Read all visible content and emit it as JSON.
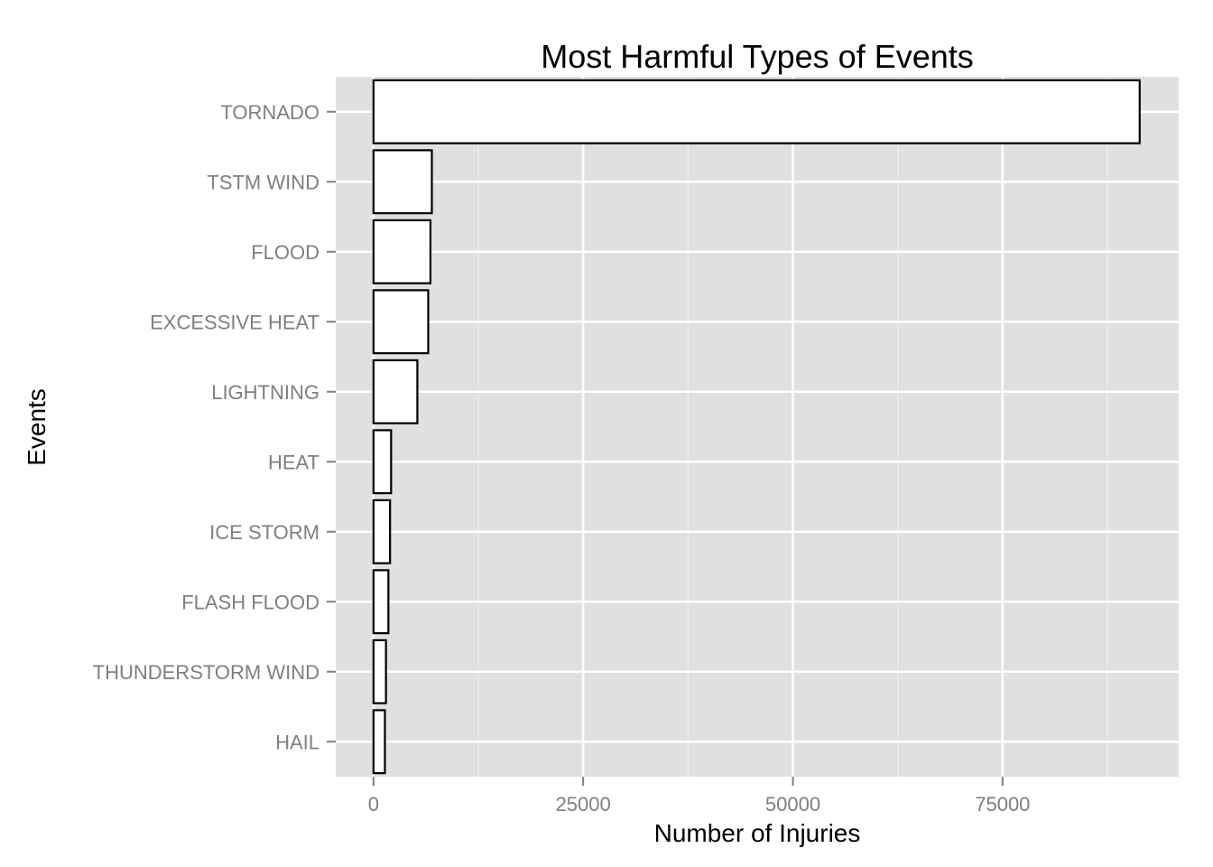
{
  "chart_data": {
    "type": "bar",
    "orientation": "horizontal",
    "title": "Most Harmful Types of Events",
    "xlabel": "Number of Injuries",
    "ylabel": "Events",
    "categories": [
      "TORNADO",
      "TSTM WIND",
      "FLOOD",
      "EXCESSIVE HEAT",
      "LIGHTNING",
      "HEAT",
      "ICE STORM",
      "FLASH FLOOD",
      "THUNDERSTORM WIND",
      "HAIL"
    ],
    "values": [
      91346,
      6957,
      6789,
      6525,
      5230,
      2100,
      1975,
      1777,
      1488,
      1361
    ],
    "xlim": [
      -4500,
      96000
    ],
    "xticks": [
      0,
      25000,
      50000,
      75000
    ],
    "xtick_labels": [
      "0",
      "25000",
      "50000",
      "75000"
    ],
    "grid": true,
    "legend": "none",
    "colors": {
      "panel_background": "#e0e0e0",
      "bar_fill": "#ffffff",
      "bar_outline": "#000000",
      "tick_label": "#7f7f7f"
    }
  }
}
